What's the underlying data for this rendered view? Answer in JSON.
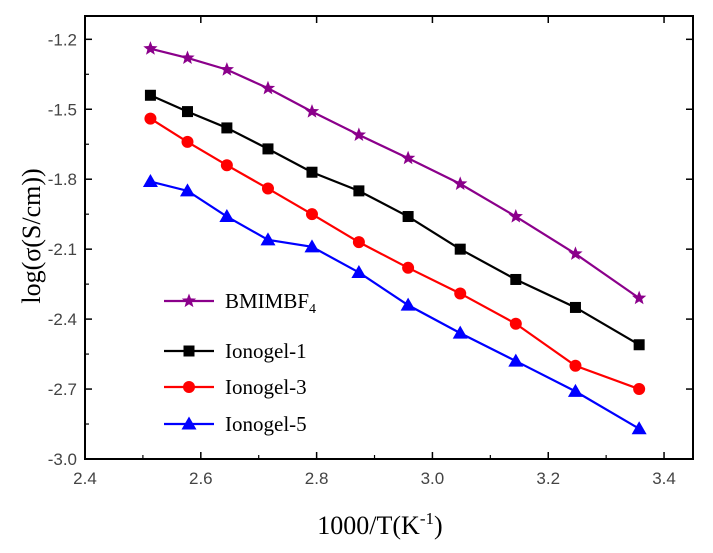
{
  "chart_data": {
    "type": "line",
    "xlabel": "1000/T(K",
    "xlabel_sup": "-1",
    "xlabel_end": ")",
    "ylabel": "log(σ(S/cm))",
    "xlim": [
      2.4,
      3.45
    ],
    "ylim": [
      -3.0,
      -1.1
    ],
    "xticks": [
      2.4,
      2.6,
      2.8,
      3.0,
      3.2,
      3.4
    ],
    "xtick_labels": [
      "2.4",
      "2.6",
      "2.8",
      "3.0",
      "3.2",
      "3.4"
    ],
    "yticks": [
      -1.2,
      -1.5,
      -1.8,
      -2.1,
      -2.4,
      -2.7,
      -3.0
    ],
    "ytick_labels": [
      "-1.2",
      "-1.5",
      "-1.8",
      "-2.1",
      "-2.4",
      "-2.7",
      "-3.0"
    ],
    "grid": false,
    "legend_position": "bottom-left",
    "x": [
      2.513,
      2.577,
      2.645,
      2.716,
      2.792,
      2.873,
      2.958,
      3.048,
      3.144,
      3.247,
      3.357
    ],
    "series": [
      {
        "name": "BMIMBF",
        "name_sub": "4",
        "color": "#8b008b",
        "marker": "star",
        "values": [
          -1.24,
          -1.28,
          -1.33,
          -1.41,
          -1.51,
          -1.61,
          -1.71,
          -1.82,
          -1.96,
          -2.12,
          -2.31
        ]
      },
      {
        "name": "Ionogel-1",
        "name_sub": "",
        "color": "#000000",
        "marker": "square",
        "values": [
          -1.44,
          -1.51,
          -1.58,
          -1.67,
          -1.77,
          -1.85,
          -1.96,
          -2.1,
          -2.23,
          -2.35,
          -2.51
        ]
      },
      {
        "name": "Ionogel-3",
        "name_sub": "",
        "color": "#ff0000",
        "marker": "circle",
        "values": [
          -1.54,
          -1.64,
          -1.74,
          -1.84,
          -1.95,
          -2.07,
          -2.18,
          -2.29,
          -2.42,
          -2.6,
          -2.7
        ]
      },
      {
        "name": "Ionogel-5",
        "name_sub": "",
        "color": "#0000ff",
        "marker": "triangle",
        "values": [
          -1.81,
          -1.85,
          -1.96,
          -2.06,
          -2.09,
          -2.2,
          -2.34,
          -2.46,
          -2.58,
          -2.71,
          -2.87
        ]
      }
    ]
  }
}
